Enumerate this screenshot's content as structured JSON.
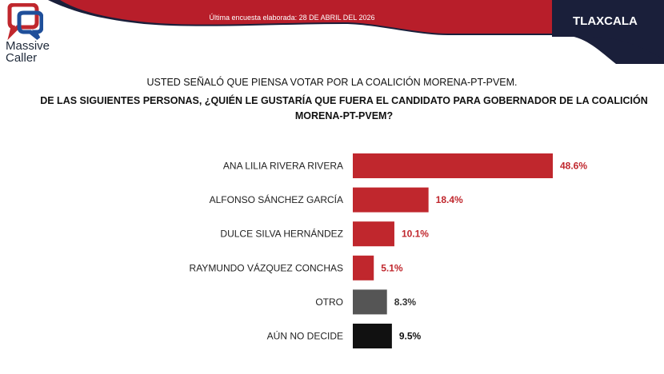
{
  "header": {
    "logo_line1": "Massive",
    "logo_line2": "Caller",
    "survey_date": "Última encuesta elaborada: 28 DE ABRIL DEL 2026",
    "region": "TLAXCALA"
  },
  "colors": {
    "banner_red": "#b81e2a",
    "banner_dark": "#1a1f3a",
    "label_red": "#c0272d",
    "label_dark": "#333333"
  },
  "chart_data": {
    "type": "bar",
    "orientation": "horizontal",
    "title": "USTED SEÑALÓ QUE PIENSA VOTAR POR LA COALICIÓN MORENA-PT-PVEM.",
    "subtitle": "DE LAS SIGUIENTES PERSONAS, ¿QUIÉN LE GUSTARÍA QUE FUERA EL CANDIDATO PARA GOBERNADOR DE LA COALICIÓN MORENA-PT-PVEM?",
    "categories": [
      "ANA LILIA RIVERA RIVERA",
      "ALFONSO SÁNCHEZ GARCÍA",
      "DULCE SILVA HERNÁNDEZ",
      "RAYMUNDO VÁZQUEZ CONCHAS",
      "OTRO",
      "AÚN NO DECIDE"
    ],
    "values": [
      48.6,
      18.4,
      10.1,
      5.1,
      8.3,
      9.5
    ],
    "value_labels": [
      "48.6%",
      "18.4%",
      "10.1%",
      "5.1%",
      "8.3%",
      "9.5%"
    ],
    "bar_colors": [
      "#c0272d",
      "#c0272d",
      "#c0272d",
      "#c0272d",
      "#555555",
      "#111111"
    ],
    "label_colors": [
      "#c0272d",
      "#c0272d",
      "#c0272d",
      "#c0272d",
      "#333333",
      "#111111"
    ],
    "unit": "%",
    "xlim": [
      0,
      48.6
    ],
    "grid": false,
    "legend": "none"
  }
}
